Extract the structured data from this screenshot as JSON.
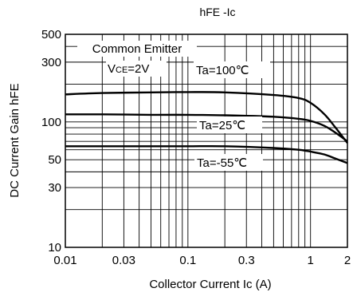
{
  "chart_data": {
    "type": "line",
    "title": "hFE -Ic",
    "xlabel": "Collector Current Ic (A)",
    "ylabel": "DC Current Gain hFE",
    "x_scale": "log",
    "y_scale": "log",
    "xlim": [
      0.01,
      2
    ],
    "ylim": [
      10,
      500
    ],
    "grid": true,
    "x_ticks": [
      {
        "value": 0.01,
        "label": "0.01"
      },
      {
        "value": 0.03,
        "label": "0.03"
      },
      {
        "value": 0.1,
        "label": "0.1"
      },
      {
        "value": 0.3,
        "label": "0.3"
      },
      {
        "value": 1,
        "label": "1"
      },
      {
        "value": 2,
        "label": "2"
      }
    ],
    "y_ticks": [
      {
        "value": 10,
        "label": "10"
      },
      {
        "value": 30,
        "label": "30"
      },
      {
        "value": 50,
        "label": "50"
      },
      {
        "value": 100,
        "label": "100"
      },
      {
        "value": 300,
        "label": "300"
      },
      {
        "value": 500,
        "label": "500"
      }
    ],
    "annotations": {
      "line1": "Common Emitter",
      "vce_prefix": "V",
      "vce_sub": "CE",
      "vce_suffix": "=2V"
    },
    "series": [
      {
        "name": "Ta=100℃",
        "x": [
          0.01,
          0.02,
          0.05,
          0.1,
          0.2,
          0.5,
          0.8,
          1.0,
          1.3,
          1.6,
          2.0
        ],
        "y": [
          166,
          170,
          172,
          173,
          172,
          164,
          155,
          142,
          115,
          90,
          68
        ]
      },
      {
        "name": "Ta=25℃",
        "x": [
          0.01,
          0.02,
          0.05,
          0.1,
          0.2,
          0.5,
          0.8,
          1.0,
          1.3,
          1.6,
          2.0
        ],
        "y": [
          115,
          115,
          114,
          114,
          113,
          110,
          106,
          102,
          93,
          82,
          70
        ]
      },
      {
        "name": "Ta=-55℃",
        "x": [
          0.01,
          0.02,
          0.05,
          0.1,
          0.2,
          0.5,
          0.8,
          1.0,
          1.3,
          1.6,
          2.0
        ],
        "y": [
          64,
          64,
          64,
          64,
          64,
          62,
          60,
          58,
          55,
          51,
          47
        ]
      }
    ]
  }
}
